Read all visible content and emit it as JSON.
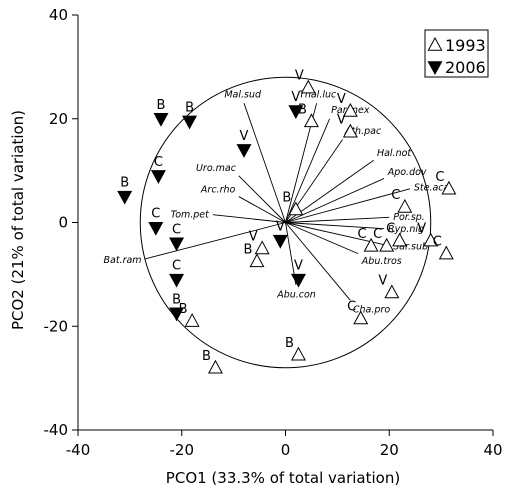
{
  "chart_data": {
    "type": "scatter",
    "xlabel": "PCO1 (33.3% of total variation)",
    "ylabel": "PCO2 (21% of total variation)",
    "xlim": [
      -40,
      40
    ],
    "ylim": [
      -40,
      40
    ],
    "x_ticks": [
      -40,
      -20,
      0,
      20,
      40
    ],
    "y_ticks": [
      -40,
      -20,
      0,
      20,
      40
    ],
    "circle_radius": 28,
    "legend": {
      "position": "top-right"
    },
    "series": [
      {
        "name": "1993",
        "marker": "open-triangle-up",
        "points": [
          {
            "x": 4.4,
            "y": 26,
            "label": "V"
          },
          {
            "x": 5,
            "y": 19.5,
            "label": "B"
          },
          {
            "x": 12.5,
            "y": 21.5,
            "label": "V"
          },
          {
            "x": 12.5,
            "y": 17.5,
            "label": "V"
          },
          {
            "x": 2,
            "y": 2.5,
            "label": "B"
          },
          {
            "x": 23,
            "y": 3,
            "label": "C"
          },
          {
            "x": 31.5,
            "y": 6.5,
            "label": "C"
          },
          {
            "x": 16.5,
            "y": -4.5,
            "label": "C"
          },
          {
            "x": 19.5,
            "y": -4.5,
            "label": "C"
          },
          {
            "x": 22,
            "y": -3.5,
            "label": "C"
          },
          {
            "x": 28,
            "y": -3.5,
            "label": "V"
          },
          {
            "x": 31,
            "y": -6,
            "label": "C"
          },
          {
            "x": 20.5,
            "y": -13.5,
            "label": "V"
          },
          {
            "x": 14.5,
            "y": -18.5,
            "label": "C"
          },
          {
            "x": -4.5,
            "y": -5,
            "label": "V"
          },
          {
            "x": -5.5,
            "y": -7.5,
            "label": "B"
          },
          {
            "x": -18,
            "y": -19,
            "label": "B"
          },
          {
            "x": -13.5,
            "y": -28,
            "label": "B"
          },
          {
            "x": 2.5,
            "y": -25.5,
            "label": "B"
          }
        ]
      },
      {
        "name": "2006",
        "marker": "filled-triangle-down",
        "points": [
          {
            "x": -24,
            "y": 20,
            "label": "B"
          },
          {
            "x": -18.5,
            "y": 19.5,
            "label": "B"
          },
          {
            "x": -8,
            "y": 14,
            "label": "V"
          },
          {
            "x": -31,
            "y": 5,
            "label": "B"
          },
          {
            "x": -24.5,
            "y": 9,
            "label": "C"
          },
          {
            "x": 2,
            "y": 21.5,
            "label": "V"
          },
          {
            "x": -25,
            "y": -1,
            "label": "C"
          },
          {
            "x": -21,
            "y": -4,
            "label": "C"
          },
          {
            "x": -21,
            "y": -11,
            "label": "C"
          },
          {
            "x": -21,
            "y": -17.5,
            "label": "B"
          },
          {
            "x": -1,
            "y": -3.5,
            "label": "V"
          },
          {
            "x": 2.5,
            "y": -11,
            "label": "V"
          }
        ]
      }
    ],
    "vectors": [
      {
        "name": "Mal.sud",
        "x": -8,
        "y": 23
      },
      {
        "name": "Thal.luc",
        "x": 6,
        "y": 23
      },
      {
        "name": "Par.mex",
        "x": 8.5,
        "y": 20
      },
      {
        "name": "Ath.pac",
        "x": 11,
        "y": 16
      },
      {
        "name": "Hal.not",
        "x": 17,
        "y": 12
      },
      {
        "name": "Apo.dov",
        "x": 19,
        "y": 8.5
      },
      {
        "name": "Ste.aca",
        "x": 24,
        "y": 6.5
      },
      {
        "name": "Uro.mac",
        "x": -9,
        "y": 9
      },
      {
        "name": "Arc.rho",
        "x": -9,
        "y": 5
      },
      {
        "name": "Tom.pet",
        "x": -14,
        "y": 1.5
      },
      {
        "name": "Bat.ram",
        "x": -27,
        "y": -7
      },
      {
        "name": "Por.sp.",
        "x": 20,
        "y": 1
      },
      {
        "name": "Ryp.nig",
        "x": 19,
        "y": -1.2
      },
      {
        "name": "Sar.sub",
        "x": 20,
        "y": -4.5
      },
      {
        "name": "Abu.tros",
        "x": 14,
        "y": -6
      },
      {
        "name": "Abu.con",
        "x": 2,
        "y": -12
      },
      {
        "name": "Cha.pro",
        "x": 12.5,
        "y": -15
      }
    ]
  }
}
